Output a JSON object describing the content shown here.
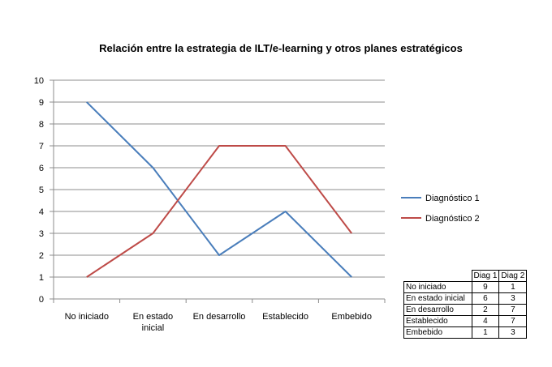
{
  "chart_data": {
    "type": "line",
    "title": "Relación entre la estrategia de ILT/e-learning y otros planes estratégicos",
    "categories": [
      "No iniciado",
      "En estado inicial",
      "En desarrollo",
      "Establecido",
      "Embebido"
    ],
    "category_tick_labels": [
      [
        "No iniciado"
      ],
      [
        "En estado",
        "inicial"
      ],
      [
        "En desarrollo"
      ],
      [
        "Establecido"
      ],
      [
        "Embebido"
      ]
    ],
    "series": [
      {
        "name": "Diagnóstico 1",
        "values": [
          9,
          6,
          2,
          4,
          1
        ],
        "color": "#4a7ebb"
      },
      {
        "name": "Diagnóstico 2",
        "values": [
          1,
          3,
          7,
          7,
          3
        ],
        "color": "#be4b48"
      }
    ],
    "ylim": [
      0,
      10
    ],
    "yticks": [
      "0",
      "1",
      "2",
      "3",
      "4",
      "5",
      "6",
      "7",
      "8",
      "9",
      "10"
    ],
    "grid": true,
    "legend_position": "right"
  },
  "table": {
    "headers": [
      "Diag 1",
      "Diag 2"
    ],
    "rows": [
      {
        "label": "No iniciado",
        "values": [
          "9",
          "1"
        ]
      },
      {
        "label": "En estado inicial",
        "values": [
          "6",
          "3"
        ]
      },
      {
        "label": "En desarrollo",
        "values": [
          "2",
          "7"
        ]
      },
      {
        "label": "Establecido",
        "values": [
          "4",
          "7"
        ]
      },
      {
        "label": "Embebido",
        "values": [
          "1",
          "3"
        ]
      }
    ]
  }
}
